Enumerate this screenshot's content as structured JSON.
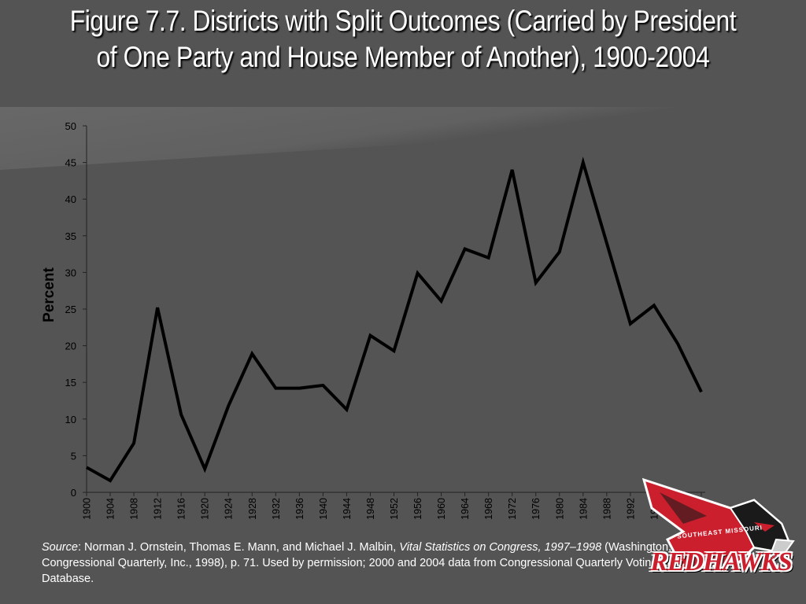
{
  "slide": {
    "title": "Figure 7.7. Districts with Split Outcomes (Carried by President of One Party and House Member of Another), 1900-2004",
    "source": {
      "prefix": "Source",
      "text1": ": Norman J. Ornstein, Thomas E. Mann, and Michael J. Malbin, ",
      "book": "Vital Statistics on Congress, 1997–1998",
      "text2": " (Washington, D.C.: Congressional Quarterly, Inc., 1998), p. 71. Used by permission; 2000 and 2004 data from Congressional Quarterly Voting and Elections Database."
    },
    "logo": {
      "text": "REDHAWKS",
      "arc_text": "SOUTHEAST MISSOURI",
      "icon": "redhawk-mascot"
    }
  },
  "colors": {
    "background": "#545454",
    "line": "#000000",
    "text": "#ffffff",
    "axis_text": "#000000",
    "logo_red": "#cc1f2d"
  },
  "chart_data": {
    "type": "line",
    "title": "",
    "xlabel": "",
    "ylabel": "Percent",
    "ylim": [
      0,
      50
    ],
    "yticks": [
      0,
      5,
      10,
      15,
      20,
      25,
      30,
      35,
      40,
      45,
      50
    ],
    "grid": false,
    "categories": [
      "1900",
      "1904",
      "1908",
      "1912",
      "1916",
      "1920",
      "1924",
      "1928",
      "1932",
      "1936",
      "1940",
      "1944",
      "1948",
      "1952",
      "1956",
      "1960",
      "1964",
      "1968",
      "1972",
      "1976",
      "1980",
      "1984",
      "1988",
      "1992",
      "1996",
      "2000",
      "2004"
    ],
    "series": [
      {
        "values": [
          3.4,
          1.6,
          6.7,
          25.2,
          10.6,
          3.2,
          11.8,
          18.9,
          14.2,
          14.2,
          14.6,
          11.3,
          21.4,
          19.3,
          29.9,
          26.1,
          33.2,
          32.0,
          44.0,
          28.6,
          32.8,
          45.0,
          34.0,
          23.0,
          25.5,
          20.3,
          13.7
        ]
      }
    ]
  }
}
